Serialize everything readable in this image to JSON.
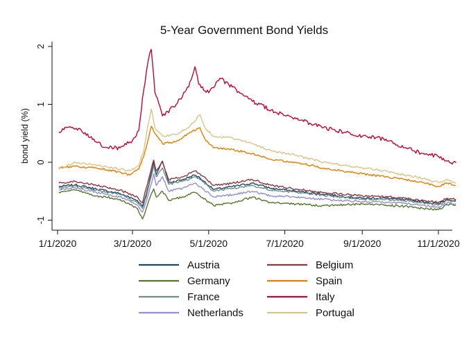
{
  "chart_data": {
    "type": "line",
    "title": "5-Year Government Bond Yields",
    "xlabel": "",
    "ylabel": "bond yield (%)",
    "xlim": [
      "2020-01-01",
      "2020-11-20"
    ],
    "ylim": [
      -1.2,
      2.1
    ],
    "x_ticks": [
      "1/1/2020",
      "3/1/2020",
      "5/1/2020",
      "7/1/2020",
      "9/1/2020",
      "11/1/2020"
    ],
    "y_ticks": [
      "-1",
      "0",
      "1",
      "2"
    ],
    "grid": false,
    "legend_position": "bottom",
    "series": [
      {
        "name": "Austria",
        "color": "#1a476f",
        "points": [
          [
            "2020-01-02",
            -0.42
          ],
          [
            "2020-01-15",
            -0.39
          ],
          [
            "2020-02-01",
            -0.46
          ],
          [
            "2020-02-20",
            -0.54
          ],
          [
            "2020-03-05",
            -0.66
          ],
          [
            "2020-03-09",
            -0.76
          ],
          [
            "2020-03-12",
            -0.55
          ],
          [
            "2020-03-16",
            -0.2
          ],
          [
            "2020-03-18",
            0.0
          ],
          [
            "2020-03-20",
            -0.22
          ],
          [
            "2020-03-25",
            0.02
          ],
          [
            "2020-03-30",
            -0.35
          ],
          [
            "2020-04-10",
            -0.3
          ],
          [
            "2020-04-20",
            -0.22
          ],
          [
            "2020-04-24",
            -0.27
          ],
          [
            "2020-05-05",
            -0.47
          ],
          [
            "2020-05-20",
            -0.42
          ],
          [
            "2020-06-05",
            -0.36
          ],
          [
            "2020-06-20",
            -0.45
          ],
          [
            "2020-07-10",
            -0.5
          ],
          [
            "2020-08-01",
            -0.55
          ],
          [
            "2020-09-01",
            -0.62
          ],
          [
            "2020-09-20",
            -0.62
          ],
          [
            "2020-10-05",
            -0.65
          ],
          [
            "2020-10-20",
            -0.68
          ],
          [
            "2020-11-01",
            -0.72
          ],
          [
            "2020-11-08",
            -0.64
          ],
          [
            "2020-11-15",
            -0.66
          ]
        ]
      },
      {
        "name": "Belgium",
        "color": "#90353b",
        "points": [
          [
            "2020-01-02",
            -0.36
          ],
          [
            "2020-01-15",
            -0.33
          ],
          [
            "2020-02-01",
            -0.4
          ],
          [
            "2020-02-20",
            -0.48
          ],
          [
            "2020-03-05",
            -0.6
          ],
          [
            "2020-03-09",
            -0.7
          ],
          [
            "2020-03-12",
            -0.45
          ],
          [
            "2020-03-16",
            -0.12
          ],
          [
            "2020-03-18",
            0.04
          ],
          [
            "2020-03-20",
            -0.15
          ],
          [
            "2020-03-25",
            0.0
          ],
          [
            "2020-03-30",
            -0.3
          ],
          [
            "2020-04-10",
            -0.25
          ],
          [
            "2020-04-20",
            -0.15
          ],
          [
            "2020-04-24",
            -0.2
          ],
          [
            "2020-05-05",
            -0.4
          ],
          [
            "2020-05-20",
            -0.36
          ],
          [
            "2020-06-05",
            -0.3
          ],
          [
            "2020-06-20",
            -0.4
          ],
          [
            "2020-07-10",
            -0.46
          ],
          [
            "2020-08-01",
            -0.52
          ],
          [
            "2020-09-01",
            -0.58
          ],
          [
            "2020-09-20",
            -0.59
          ],
          [
            "2020-10-05",
            -0.62
          ],
          [
            "2020-10-20",
            -0.66
          ],
          [
            "2020-11-01",
            -0.69
          ],
          [
            "2020-11-08",
            -0.62
          ],
          [
            "2020-11-15",
            -0.64
          ]
        ]
      },
      {
        "name": "Germany",
        "color": "#55752f",
        "points": [
          [
            "2020-01-02",
            -0.52
          ],
          [
            "2020-01-15",
            -0.48
          ],
          [
            "2020-02-01",
            -0.58
          ],
          [
            "2020-02-20",
            -0.64
          ],
          [
            "2020-03-05",
            -0.8
          ],
          [
            "2020-03-09",
            -0.98
          ],
          [
            "2020-03-12",
            -0.8
          ],
          [
            "2020-03-16",
            -0.55
          ],
          [
            "2020-03-18",
            -0.46
          ],
          [
            "2020-03-20",
            -0.6
          ],
          [
            "2020-03-25",
            -0.5
          ],
          [
            "2020-03-30",
            -0.66
          ],
          [
            "2020-04-10",
            -0.6
          ],
          [
            "2020-04-20",
            -0.52
          ],
          [
            "2020-04-24",
            -0.58
          ],
          [
            "2020-05-05",
            -0.75
          ],
          [
            "2020-05-20",
            -0.7
          ],
          [
            "2020-06-05",
            -0.6
          ],
          [
            "2020-06-20",
            -0.7
          ],
          [
            "2020-07-10",
            -0.72
          ],
          [
            "2020-08-01",
            -0.75
          ],
          [
            "2020-09-01",
            -0.72
          ],
          [
            "2020-09-20",
            -0.74
          ],
          [
            "2020-10-05",
            -0.76
          ],
          [
            "2020-10-20",
            -0.8
          ],
          [
            "2020-11-01",
            -0.82
          ],
          [
            "2020-11-08",
            -0.73
          ],
          [
            "2020-11-15",
            -0.74
          ]
        ]
      },
      {
        "name": "Spain",
        "color": "#e37e00",
        "points": [
          [
            "2020-01-02",
            -0.1
          ],
          [
            "2020-01-15",
            -0.07
          ],
          [
            "2020-02-01",
            -0.1
          ],
          [
            "2020-02-15",
            -0.15
          ],
          [
            "2020-02-28",
            -0.22
          ],
          [
            "2020-03-06",
            -0.12
          ],
          [
            "2020-03-10",
            0.1
          ],
          [
            "2020-03-13",
            0.35
          ],
          [
            "2020-03-16",
            0.62
          ],
          [
            "2020-03-19",
            0.5
          ],
          [
            "2020-03-25",
            0.32
          ],
          [
            "2020-04-05",
            0.36
          ],
          [
            "2020-04-15",
            0.5
          ],
          [
            "2020-04-24",
            0.6
          ],
          [
            "2020-04-28",
            0.4
          ],
          [
            "2020-05-05",
            0.25
          ],
          [
            "2020-05-20",
            0.22
          ],
          [
            "2020-06-05",
            0.15
          ],
          [
            "2020-06-20",
            0.05
          ],
          [
            "2020-07-10",
            0.0
          ],
          [
            "2020-08-01",
            -0.1
          ],
          [
            "2020-09-01",
            -0.2
          ],
          [
            "2020-09-20",
            -0.25
          ],
          [
            "2020-10-05",
            -0.3
          ],
          [
            "2020-10-20",
            -0.35
          ],
          [
            "2020-11-01",
            -0.42
          ],
          [
            "2020-11-08",
            -0.36
          ],
          [
            "2020-11-15",
            -0.4
          ]
        ]
      },
      {
        "name": "France",
        "color": "#6e8e84",
        "points": [
          [
            "2020-01-02",
            -0.45
          ],
          [
            "2020-01-15",
            -0.41
          ],
          [
            "2020-02-01",
            -0.48
          ],
          [
            "2020-02-20",
            -0.56
          ],
          [
            "2020-03-05",
            -0.7
          ],
          [
            "2020-03-09",
            -0.8
          ],
          [
            "2020-03-12",
            -0.6
          ],
          [
            "2020-03-16",
            -0.25
          ],
          [
            "2020-03-18",
            -0.05
          ],
          [
            "2020-03-20",
            -0.25
          ],
          [
            "2020-03-25",
            -0.1
          ],
          [
            "2020-03-30",
            -0.38
          ],
          [
            "2020-04-10",
            -0.33
          ],
          [
            "2020-04-20",
            -0.25
          ],
          [
            "2020-04-24",
            -0.3
          ],
          [
            "2020-05-05",
            -0.5
          ],
          [
            "2020-05-20",
            -0.45
          ],
          [
            "2020-06-05",
            -0.4
          ],
          [
            "2020-06-20",
            -0.48
          ],
          [
            "2020-07-10",
            -0.52
          ],
          [
            "2020-08-01",
            -0.57
          ],
          [
            "2020-09-01",
            -0.64
          ],
          [
            "2020-09-20",
            -0.64
          ],
          [
            "2020-10-05",
            -0.67
          ],
          [
            "2020-10-20",
            -0.7
          ],
          [
            "2020-11-01",
            -0.74
          ],
          [
            "2020-11-08",
            -0.66
          ],
          [
            "2020-11-15",
            -0.68
          ]
        ]
      },
      {
        "name": "Italy",
        "color": "#c10534",
        "points": [
          [
            "2020-01-02",
            0.52
          ],
          [
            "2020-01-08",
            0.6
          ],
          [
            "2020-01-20",
            0.55
          ],
          [
            "2020-02-01",
            0.35
          ],
          [
            "2020-02-10",
            0.25
          ],
          [
            "2020-02-20",
            0.25
          ],
          [
            "2020-03-01",
            0.38
          ],
          [
            "2020-03-06",
            0.55
          ],
          [
            "2020-03-10",
            1.25
          ],
          [
            "2020-03-14",
            1.8
          ],
          [
            "2020-03-16",
            1.95
          ],
          [
            "2020-03-19",
            1.2
          ],
          [
            "2020-03-25",
            0.8
          ],
          [
            "2020-04-05",
            1.0
          ],
          [
            "2020-04-15",
            1.3
          ],
          [
            "2020-04-20",
            1.65
          ],
          [
            "2020-04-23",
            1.35
          ],
          [
            "2020-05-01",
            1.2
          ],
          [
            "2020-05-10",
            1.45
          ],
          [
            "2020-05-20",
            1.3
          ],
          [
            "2020-06-05",
            1.05
          ],
          [
            "2020-06-20",
            0.9
          ],
          [
            "2020-07-10",
            0.75
          ],
          [
            "2020-08-01",
            0.6
          ],
          [
            "2020-09-01",
            0.45
          ],
          [
            "2020-09-20",
            0.4
          ],
          [
            "2020-10-05",
            0.25
          ],
          [
            "2020-10-20",
            0.15
          ],
          [
            "2020-11-01",
            0.1
          ],
          [
            "2020-11-08",
            0.02
          ],
          [
            "2020-11-15",
            -0.01
          ]
        ]
      },
      {
        "name": "Netherlands",
        "color": "#938dd2",
        "points": [
          [
            "2020-01-02",
            -0.48
          ],
          [
            "2020-01-15",
            -0.44
          ],
          [
            "2020-02-01",
            -0.52
          ],
          [
            "2020-02-20",
            -0.6
          ],
          [
            "2020-03-05",
            -0.74
          ],
          [
            "2020-03-09",
            -0.86
          ],
          [
            "2020-03-12",
            -0.68
          ],
          [
            "2020-03-16",
            -0.38
          ],
          [
            "2020-03-18",
            -0.2
          ],
          [
            "2020-03-20",
            -0.4
          ],
          [
            "2020-03-25",
            -0.25
          ],
          [
            "2020-03-30",
            -0.5
          ],
          [
            "2020-04-10",
            -0.45
          ],
          [
            "2020-04-20",
            -0.36
          ],
          [
            "2020-04-24",
            -0.42
          ],
          [
            "2020-05-05",
            -0.6
          ],
          [
            "2020-05-20",
            -0.56
          ],
          [
            "2020-06-05",
            -0.5
          ],
          [
            "2020-06-20",
            -0.58
          ],
          [
            "2020-07-10",
            -0.6
          ],
          [
            "2020-08-01",
            -0.64
          ],
          [
            "2020-09-01",
            -0.68
          ],
          [
            "2020-09-20",
            -0.69
          ],
          [
            "2020-10-05",
            -0.71
          ],
          [
            "2020-10-20",
            -0.74
          ],
          [
            "2020-11-01",
            -0.78
          ],
          [
            "2020-11-08",
            -0.7
          ],
          [
            "2020-11-15",
            -0.72
          ]
        ]
      },
      {
        "name": "Portugal",
        "color": "#d9c487",
        "points": [
          [
            "2020-01-02",
            -0.12
          ],
          [
            "2020-01-15",
            0.0
          ],
          [
            "2020-02-01",
            -0.05
          ],
          [
            "2020-02-15",
            -0.1
          ],
          [
            "2020-02-28",
            -0.15
          ],
          [
            "2020-03-06",
            -0.05
          ],
          [
            "2020-03-10",
            0.2
          ],
          [
            "2020-03-13",
            0.6
          ],
          [
            "2020-03-16",
            0.92
          ],
          [
            "2020-03-19",
            0.6
          ],
          [
            "2020-03-25",
            0.45
          ],
          [
            "2020-04-05",
            0.48
          ],
          [
            "2020-04-15",
            0.6
          ],
          [
            "2020-04-24",
            0.82
          ],
          [
            "2020-04-28",
            0.6
          ],
          [
            "2020-05-05",
            0.45
          ],
          [
            "2020-05-20",
            0.42
          ],
          [
            "2020-06-05",
            0.32
          ],
          [
            "2020-06-20",
            0.2
          ],
          [
            "2020-07-10",
            0.12
          ],
          [
            "2020-08-01",
            0.0
          ],
          [
            "2020-09-01",
            -0.1
          ],
          [
            "2020-09-20",
            -0.15
          ],
          [
            "2020-10-05",
            -0.22
          ],
          [
            "2020-10-20",
            -0.28
          ],
          [
            "2020-11-01",
            -0.35
          ],
          [
            "2020-11-08",
            -0.3
          ],
          [
            "2020-11-15",
            -0.36
          ]
        ]
      }
    ]
  }
}
